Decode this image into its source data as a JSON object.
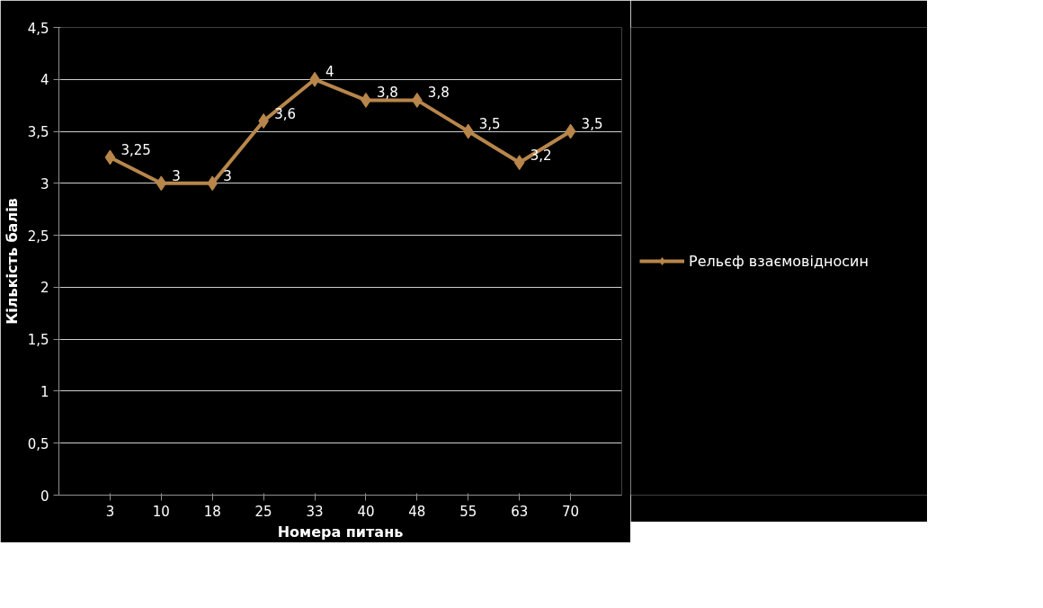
{
  "chart_data": {
    "type": "line",
    "xlabel": "Номера питань",
    "ylabel": "Кількість балів",
    "categories": [
      "3",
      "10",
      "18",
      "25",
      "33",
      "40",
      "48",
      "55",
      "63",
      "70"
    ],
    "series": [
      {
        "name": "Рельєф взаємовідносин",
        "color": "#b8864b",
        "values": [
          3.25,
          3,
          3,
          3.6,
          4,
          3.8,
          3.8,
          3.5,
          3.2,
          3.5
        ],
        "value_labels": [
          "3,25",
          "3",
          "3",
          "3,6",
          "4",
          "3,8",
          "3,8",
          "3,5",
          "3,2",
          "3,5"
        ]
      }
    ],
    "ylim": [
      0,
      4.5
    ],
    "yticks": [
      0,
      {
        "value": 0.5,
        "label": "0,5"
      },
      1,
      {
        "value": 1.5,
        "label": "1,5"
      },
      2,
      {
        "value": 2.5,
        "label": "2,5"
      },
      3,
      {
        "value": 3.5,
        "label": "3,5"
      },
      4,
      {
        "value": 4.5,
        "label": "4,5"
      }
    ],
    "grid": "y",
    "legend": "right",
    "marker": "diamond",
    "line_style": "solid"
  }
}
